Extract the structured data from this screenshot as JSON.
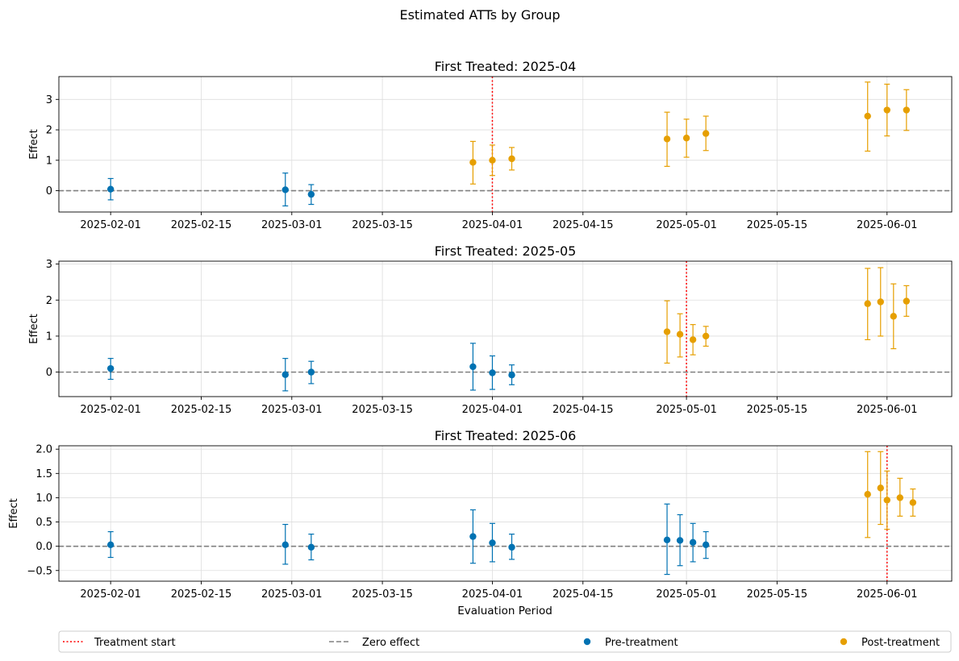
{
  "chart_data": {
    "type": "scatter",
    "suptitle": "Estimated ATTs by Group",
    "xlabel": "Evaluation Period",
    "x_ticks": [
      "2025-02-01",
      "2025-02-15",
      "2025-03-01",
      "2025-03-15",
      "2025-04-01",
      "2025-04-15",
      "2025-05-01",
      "2025-05-15",
      "2025-06-01"
    ],
    "legend": {
      "placement": "bottom",
      "entries": [
        {
          "label": "Treatment start",
          "style": "dotted",
          "color": "#ff0000"
        },
        {
          "label": "Zero effect",
          "style": "dashed",
          "color": "#808080"
        },
        {
          "label": "Pre-treatment",
          "style": "marker",
          "color": "#0072B2"
        },
        {
          "label": "Post-treatment",
          "style": "marker",
          "color": "#E69F00"
        }
      ]
    },
    "colors": {
      "pre": "#0072B2",
      "post": "#E69F00",
      "treatment": "#ff0000",
      "zero": "#808080"
    },
    "panels": [
      {
        "title": "First Treated: 2025-04",
        "ylabel": "Effect",
        "treatment_date": "2025-04-01",
        "ylim": [
          -0.7,
          3.75
        ],
        "yticks": [
          0,
          1,
          2,
          3
        ],
        "ytick_labels": [
          "0",
          "1",
          "2",
          "3"
        ],
        "points": [
          {
            "date": "2025-02-01",
            "att": 0.05,
            "lo": -0.3,
            "hi": 0.4,
            "phase": "pre"
          },
          {
            "date": "2025-02-28",
            "att": 0.03,
            "lo": -0.5,
            "hi": 0.58,
            "phase": "pre"
          },
          {
            "date": "2025-03-04",
            "att": -0.12,
            "lo": -0.45,
            "hi": 0.2,
            "phase": "pre"
          },
          {
            "date": "2025-03-29",
            "att": 0.93,
            "lo": 0.22,
            "hi": 1.62,
            "phase": "post"
          },
          {
            "date": "2025-04-01",
            "att": 1.0,
            "lo": 0.5,
            "hi": 1.5,
            "phase": "post"
          },
          {
            "date": "2025-04-04",
            "att": 1.05,
            "lo": 0.68,
            "hi": 1.42,
            "phase": "post"
          },
          {
            "date": "2025-04-28",
            "att": 1.7,
            "lo": 0.8,
            "hi": 2.58,
            "phase": "post"
          },
          {
            "date": "2025-05-01",
            "att": 1.73,
            "lo": 1.1,
            "hi": 2.35,
            "phase": "post"
          },
          {
            "date": "2025-05-04",
            "att": 1.88,
            "lo": 1.32,
            "hi": 2.45,
            "phase": "post"
          },
          {
            "date": "2025-05-29",
            "att": 2.45,
            "lo": 1.3,
            "hi": 3.57,
            "phase": "post"
          },
          {
            "date": "2025-06-01",
            "att": 2.65,
            "lo": 1.8,
            "hi": 3.5,
            "phase": "post"
          },
          {
            "date": "2025-06-04",
            "att": 2.65,
            "lo": 1.98,
            "hi": 3.32,
            "phase": "post"
          }
        ]
      },
      {
        "title": "First Treated: 2025-05",
        "ylabel": "Effect",
        "treatment_date": "2025-05-01",
        "ylim": [
          -0.68,
          3.08
        ],
        "yticks": [
          0,
          1,
          2,
          3
        ],
        "ytick_labels": [
          "0",
          "1",
          "2",
          "3"
        ],
        "points": [
          {
            "date": "2025-02-01",
            "att": 0.1,
            "lo": -0.2,
            "hi": 0.38,
            "phase": "pre"
          },
          {
            "date": "2025-02-28",
            "att": -0.07,
            "lo": -0.52,
            "hi": 0.38,
            "phase": "pre"
          },
          {
            "date": "2025-03-04",
            "att": 0.0,
            "lo": -0.32,
            "hi": 0.3,
            "phase": "pre"
          },
          {
            "date": "2025-03-29",
            "att": 0.15,
            "lo": -0.5,
            "hi": 0.8,
            "phase": "pre"
          },
          {
            "date": "2025-04-01",
            "att": -0.02,
            "lo": -0.48,
            "hi": 0.45,
            "phase": "pre"
          },
          {
            "date": "2025-04-04",
            "att": -0.08,
            "lo": -0.35,
            "hi": 0.2,
            "phase": "pre"
          },
          {
            "date": "2025-04-28",
            "att": 1.12,
            "lo": 0.25,
            "hi": 1.98,
            "phase": "post"
          },
          {
            "date": "2025-04-30",
            "att": 1.05,
            "lo": 0.42,
            "hi": 1.62,
            "phase": "post"
          },
          {
            "date": "2025-05-02",
            "att": 0.9,
            "lo": 0.48,
            "hi": 1.32,
            "phase": "post"
          },
          {
            "date": "2025-05-04",
            "att": 1.0,
            "lo": 0.72,
            "hi": 1.27,
            "phase": "post"
          },
          {
            "date": "2025-05-29",
            "att": 1.9,
            "lo": 0.9,
            "hi": 2.88,
            "phase": "post"
          },
          {
            "date": "2025-05-31",
            "att": 1.95,
            "lo": 1.0,
            "hi": 2.9,
            "phase": "post"
          },
          {
            "date": "2025-06-02",
            "att": 1.55,
            "lo": 0.65,
            "hi": 2.45,
            "phase": "post"
          },
          {
            "date": "2025-06-04",
            "att": 1.97,
            "lo": 1.55,
            "hi": 2.4,
            "phase": "post"
          }
        ]
      },
      {
        "title": "First Treated: 2025-06",
        "ylabel": "Effect",
        "treatment_date": "2025-06-01",
        "ylim": [
          -0.72,
          2.07
        ],
        "yticks": [
          -0.5,
          0,
          0.5,
          1,
          1.5,
          2
        ],
        "ytick_labels": [
          "−0.5",
          "0.0",
          "0.5",
          "1.0",
          "1.5",
          "2.0"
        ],
        "points": [
          {
            "date": "2025-02-01",
            "att": 0.03,
            "lo": -0.23,
            "hi": 0.3,
            "phase": "pre"
          },
          {
            "date": "2025-02-28",
            "att": 0.03,
            "lo": -0.37,
            "hi": 0.45,
            "phase": "pre"
          },
          {
            "date": "2025-03-04",
            "att": -0.02,
            "lo": -0.28,
            "hi": 0.25,
            "phase": "pre"
          },
          {
            "date": "2025-03-29",
            "att": 0.2,
            "lo": -0.35,
            "hi": 0.75,
            "phase": "pre"
          },
          {
            "date": "2025-04-01",
            "att": 0.07,
            "lo": -0.32,
            "hi": 0.47,
            "phase": "pre"
          },
          {
            "date": "2025-04-04",
            "att": -0.02,
            "lo": -0.27,
            "hi": 0.25,
            "phase": "pre"
          },
          {
            "date": "2025-04-28",
            "att": 0.13,
            "lo": -0.58,
            "hi": 0.87,
            "phase": "pre"
          },
          {
            "date": "2025-04-30",
            "att": 0.12,
            "lo": -0.4,
            "hi": 0.65,
            "phase": "pre"
          },
          {
            "date": "2025-05-02",
            "att": 0.08,
            "lo": -0.32,
            "hi": 0.47,
            "phase": "pre"
          },
          {
            "date": "2025-05-04",
            "att": 0.03,
            "lo": -0.25,
            "hi": 0.3,
            "phase": "pre"
          },
          {
            "date": "2025-05-29",
            "att": 1.07,
            "lo": 0.18,
            "hi": 1.95,
            "phase": "post"
          },
          {
            "date": "2025-05-31",
            "att": 1.2,
            "lo": 0.45,
            "hi": 1.95,
            "phase": "post"
          },
          {
            "date": "2025-06-01",
            "att": 0.95,
            "lo": 0.35,
            "hi": 1.55,
            "phase": "post"
          },
          {
            "date": "2025-06-03",
            "att": 1.0,
            "lo": 0.62,
            "hi": 1.4,
            "phase": "post"
          },
          {
            "date": "2025-06-05",
            "att": 0.9,
            "lo": 0.62,
            "hi": 1.18,
            "phase": "post"
          }
        ]
      }
    ]
  }
}
